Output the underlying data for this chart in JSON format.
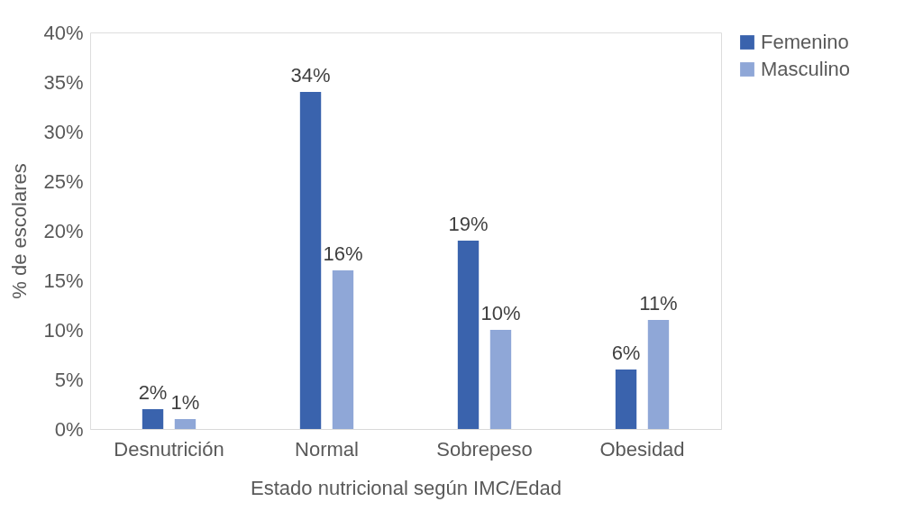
{
  "chart_data": {
    "type": "bar",
    "xlabel": "Estado nutricional según IMC/Edad",
    "ylabel": "% de escolares",
    "categories": [
      "Desnutrición",
      "Normal",
      "Sobrepeso",
      "Obesidad"
    ],
    "series": [
      {
        "name": "Femenino",
        "color": "#3a63ad",
        "values": [
          2,
          34,
          19,
          6
        ],
        "value_labels": [
          "2%",
          "34%",
          "19%",
          "6%"
        ]
      },
      {
        "name": "Masculino",
        "color": "#8fa7d7",
        "values": [
          1,
          16,
          10,
          11
        ],
        "value_labels": [
          "1%",
          "16%",
          "10%",
          "11%"
        ]
      }
    ],
    "ylim": [
      0,
      40
    ],
    "yticks": [
      {
        "value": 0,
        "label": "0%"
      },
      {
        "value": 5,
        "label": "5%"
      },
      {
        "value": 10,
        "label": "10%"
      },
      {
        "value": 15,
        "label": "15%"
      },
      {
        "value": 20,
        "label": "20%"
      },
      {
        "value": 25,
        "label": "25%"
      },
      {
        "value": 30,
        "label": "30%"
      },
      {
        "value": 35,
        "label": "35%"
      },
      {
        "value": 40,
        "label": "40%"
      }
    ],
    "grid": false,
    "legend": "right"
  }
}
